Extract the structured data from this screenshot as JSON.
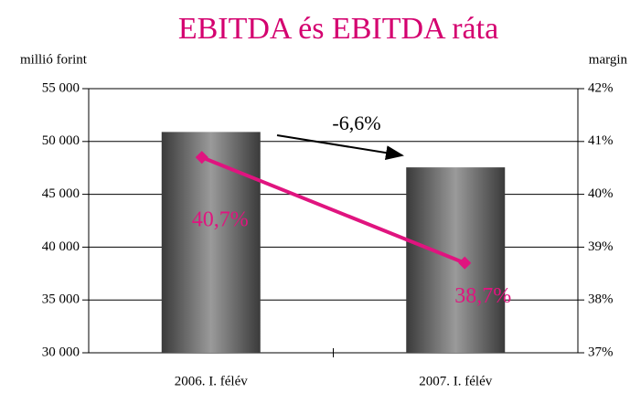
{
  "chart_data": {
    "type": "bar_line",
    "title": "EBITDA és EBITDA ráta",
    "y_axis_label": "millió forint",
    "y2_axis_label": "margin",
    "annotation": "-6,6%",
    "categories": [
      "2006. I. félév",
      "2007. I. félév"
    ],
    "series": [
      {
        "name": "EBITDA",
        "type": "bar",
        "color": "#6e6e6e",
        "values": [
          50900,
          47550
        ]
      },
      {
        "name": "EBITDA ráta",
        "type": "line",
        "axis": "y2",
        "color": "#e0147f",
        "values": [
          40.7,
          38.7
        ],
        "value_labels": [
          "40,7%",
          "38,7%"
        ]
      }
    ],
    "ylim": [
      30000,
      55000
    ],
    "yticks": [
      {
        "value": 30000,
        "label": "30 000"
      },
      {
        "value": 35000,
        "label": "35 000"
      },
      {
        "value": 40000,
        "label": "40 000"
      },
      {
        "value": 45000,
        "label": "45 000"
      },
      {
        "value": 50000,
        "label": "50 000"
      },
      {
        "value": 55000,
        "label": "55 000"
      }
    ],
    "y2lim": [
      37,
      42
    ],
    "y2ticks": [
      {
        "value": 37,
        "label": "37%"
      },
      {
        "value": 38,
        "label": "38%"
      },
      {
        "value": 39,
        "label": "39%"
      },
      {
        "value": 40,
        "label": "40%"
      },
      {
        "value": 41,
        "label": "41%"
      },
      {
        "value": 42,
        "label": "42%"
      }
    ],
    "grid": true
  }
}
